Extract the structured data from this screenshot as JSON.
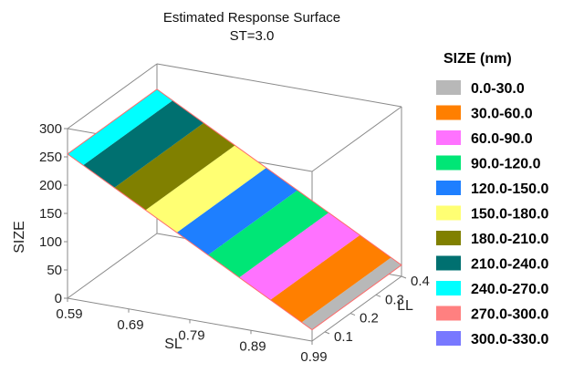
{
  "chart_data": {
    "type": "surface",
    "title": "Estimated Response Surface",
    "subtitle": "ST=3.0",
    "xlabel": "SL",
    "ylabel": "LL",
    "zlabel": "SIZE",
    "x_ticks": [
      "0.59",
      "0.69",
      "0.79",
      "0.89",
      "0.99"
    ],
    "y_ticks": [
      "0.1",
      "0.2",
      "0.3",
      "0.4"
    ],
    "z_ticks": [
      "0",
      "50",
      "100",
      "150",
      "200",
      "250",
      "300"
    ],
    "xlim": [
      0.59,
      0.99
    ],
    "ylim": [
      0.05,
      0.4
    ],
    "zlim": [
      0,
      300
    ],
    "surface": {
      "sl": [
        0.59,
        0.99
      ],
      "size_at_sl": [
        255,
        20
      ]
    },
    "legend": {
      "title": "SIZE (nm)",
      "placement": "right",
      "entries": [
        {
          "label": "0.0-30.0",
          "color": "#b8b8b8"
        },
        {
          "label": "30.0-60.0",
          "color": "#ff7f00"
        },
        {
          "label": "60.0-90.0",
          "color": "#ff72ff"
        },
        {
          "label": "90.0-120.0",
          "color": "#00e676"
        },
        {
          "label": "120.0-150.0",
          "color": "#1e7fff"
        },
        {
          "label": "150.0-180.0",
          "color": "#ffff73"
        },
        {
          "label": "180.0-210.0",
          "color": "#808000"
        },
        {
          "label": "210.0-240.0",
          "color": "#007070"
        },
        {
          "label": "240.0-270.0",
          "color": "#00ffff"
        },
        {
          "label": "270.0-300.0",
          "color": "#ff8080"
        },
        {
          "label": "300.0-330.0",
          "color": "#7878ff"
        }
      ]
    }
  }
}
